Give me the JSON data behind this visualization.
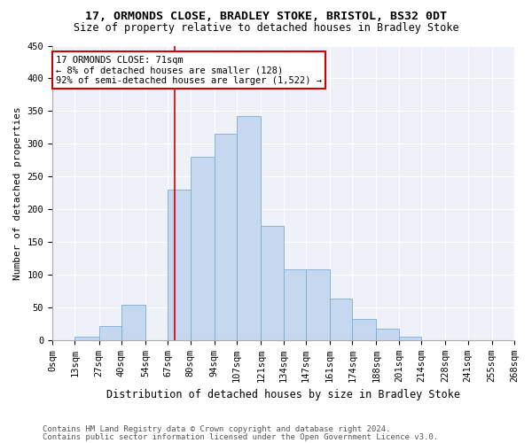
{
  "title": "17, ORMONDS CLOSE, BRADLEY STOKE, BRISTOL, BS32 0DT",
  "subtitle": "Size of property relative to detached houses in Bradley Stoke",
  "xlabel": "Distribution of detached houses by size in Bradley Stoke",
  "ylabel": "Number of detached properties",
  "footnote1": "Contains HM Land Registry data © Crown copyright and database right 2024.",
  "footnote2": "Contains public sector information licensed under the Open Government Licence v3.0.",
  "annotation_line1": "17 ORMONDS CLOSE: 71sqm",
  "annotation_line2": "← 8% of detached houses are smaller (128)",
  "annotation_line3": "92% of semi-detached houses are larger (1,522) →",
  "property_size": 71,
  "bar_edges": [
    0,
    13,
    27,
    40,
    54,
    67,
    80,
    94,
    107,
    121,
    134,
    147,
    161,
    174,
    188,
    201,
    214,
    228,
    241,
    255,
    268
  ],
  "bar_labels": [
    "0sqm",
    "13sqm",
    "27sqm",
    "40sqm",
    "54sqm",
    "67sqm",
    "80sqm",
    "94sqm",
    "107sqm",
    "121sqm",
    "134sqm",
    "147sqm",
    "161sqm",
    "174sqm",
    "188sqm",
    "201sqm",
    "214sqm",
    "228sqm",
    "241sqm",
    "255sqm",
    "268sqm"
  ],
  "bar_heights": [
    0,
    5,
    22,
    54,
    0,
    230,
    280,
    315,
    342,
    175,
    108,
    108,
    63,
    32,
    18,
    5,
    0,
    0,
    0,
    0
  ],
  "bar_color": "#c5d8f0",
  "bar_edge_color": "#7aacd4",
  "vline_color": "#cc0000",
  "annotation_box_color": "#cc0000",
  "ylim": [
    0,
    450
  ],
  "yticks": [
    0,
    50,
    100,
    150,
    200,
    250,
    300,
    350,
    400,
    450
  ],
  "background_color": "#eef2f8",
  "grid_color": "#ffffff",
  "title_fontsize": 9.5,
  "subtitle_fontsize": 8.5,
  "tick_fontsize": 7.5,
  "ylabel_fontsize": 8,
  "xlabel_fontsize": 8.5,
  "annotation_fontsize": 7.5,
  "footnote_fontsize": 6.5
}
